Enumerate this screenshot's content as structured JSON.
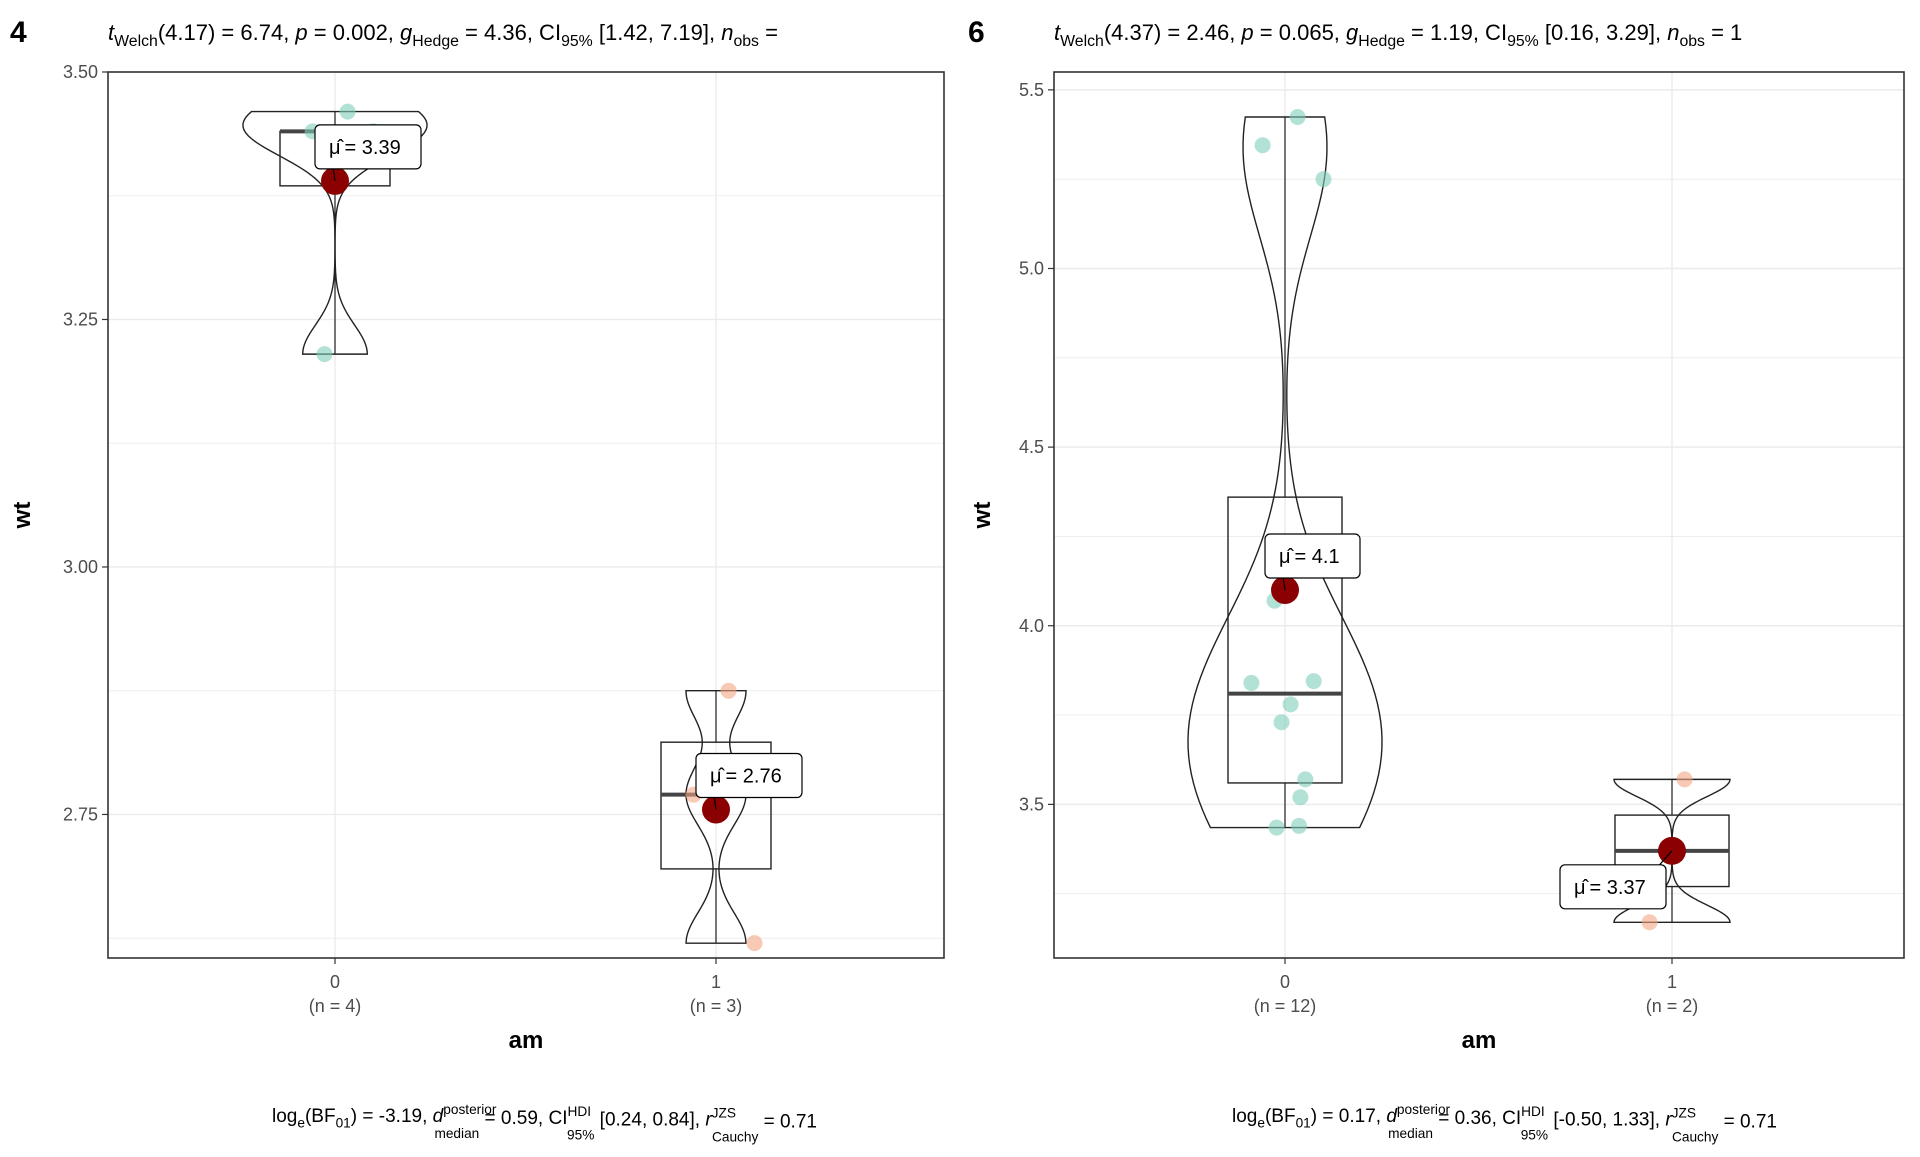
{
  "colors": {
    "group0": "#7fcdbb",
    "group1": "#f4a582",
    "mean": "#8b0000",
    "grid": "#ebebeb",
    "outline": "#333333"
  },
  "chart_data": [
    {
      "type": "violin-box",
      "panel_tag": "4",
      "title_parts": [
        "t",
        "Welch",
        "(4.17) = 6.74, ",
        "p",
        " = 0.002, ",
        "g",
        "Hedge",
        " = 4.36, CI",
        "95%",
        " [1.42, 7.19], ",
        "n",
        "obs",
        " = "
      ],
      "footer_parts": [
        "log",
        "e",
        "(BF",
        "01",
        ") = -3.19, ",
        "d",
        "posterior",
        "median",
        " = 0.59, CI",
        "HDI",
        "95%",
        " [0.24, 0.84], ",
        "r",
        "JZS",
        "Cauchy",
        " = 0.71"
      ],
      "xlabel": "am",
      "ylabel": "wt",
      "ylim": [
        2.605,
        3.5
      ],
      "yticks": [
        "3.50",
        "3.25",
        "3.00",
        "2.75"
      ],
      "categories": [
        "0",
        "1"
      ],
      "counts": [
        "(n = 4)",
        "(n = 3)"
      ],
      "groups": [
        {
          "name": "0",
          "points": [
            3.46,
            3.44,
            3.44,
            3.215
          ],
          "box": {
            "q1": 3.385,
            "median": 3.44,
            "q3": 3.44,
            "min": 3.215,
            "max": 3.46
          },
          "mean": 3.39,
          "mean_label": "= 3.39"
        },
        {
          "name": "1",
          "points": [
            2.875,
            2.77,
            2.62
          ],
          "box": {
            "q1": 2.695,
            "median": 2.77,
            "q3": 2.823,
            "min": 2.62,
            "max": 2.875
          },
          "mean": 2.755,
          "mean_label": "= 2.76"
        }
      ]
    },
    {
      "type": "violin-box",
      "panel_tag": "6",
      "title_parts": [
        "t",
        "Welch",
        "(4.37) = 2.46, ",
        "p",
        " = 0.065, ",
        "g",
        "Hedge",
        " = 1.19, CI",
        "95%",
        " [0.16, 3.29], ",
        "n",
        "obs",
        " = 1"
      ],
      "footer_parts": [
        "log",
        "e",
        "(BF",
        "01",
        ") = 0.17, ",
        "d",
        "posterior",
        "median",
        " = 0.36, CI",
        "HDI",
        "95%",
        " [-0.50, 1.33], ",
        "r",
        "JZS",
        "Cauchy",
        " = 0.71"
      ],
      "xlabel": "am",
      "ylabel": "wt",
      "ylim": [
        3.07,
        5.55
      ],
      "yticks": [
        "5.5",
        "5.0",
        "4.5",
        "4.0",
        "3.5"
      ],
      "categories": [
        "0",
        "1"
      ],
      "counts": [
        "(n = 12)",
        "(n = 2)"
      ],
      "groups": [
        {
          "name": "0",
          "points": [
            5.424,
            5.345,
            5.25,
            4.07,
            3.845,
            3.84,
            3.78,
            3.73,
            3.57,
            3.52,
            3.435,
            3.44
          ],
          "box": {
            "q1": 3.56,
            "median": 3.81,
            "q3": 4.36,
            "min": 3.435,
            "max": 5.424
          },
          "mean": 4.1,
          "mean_label": "= 4.1"
        },
        {
          "name": "1",
          "points": [
            3.57,
            3.17
          ],
          "box": {
            "q1": 3.27,
            "median": 3.37,
            "q3": 3.47,
            "min": 3.17,
            "max": 3.57
          },
          "mean": 3.37,
          "mean_label": "= 3.37"
        }
      ]
    }
  ]
}
